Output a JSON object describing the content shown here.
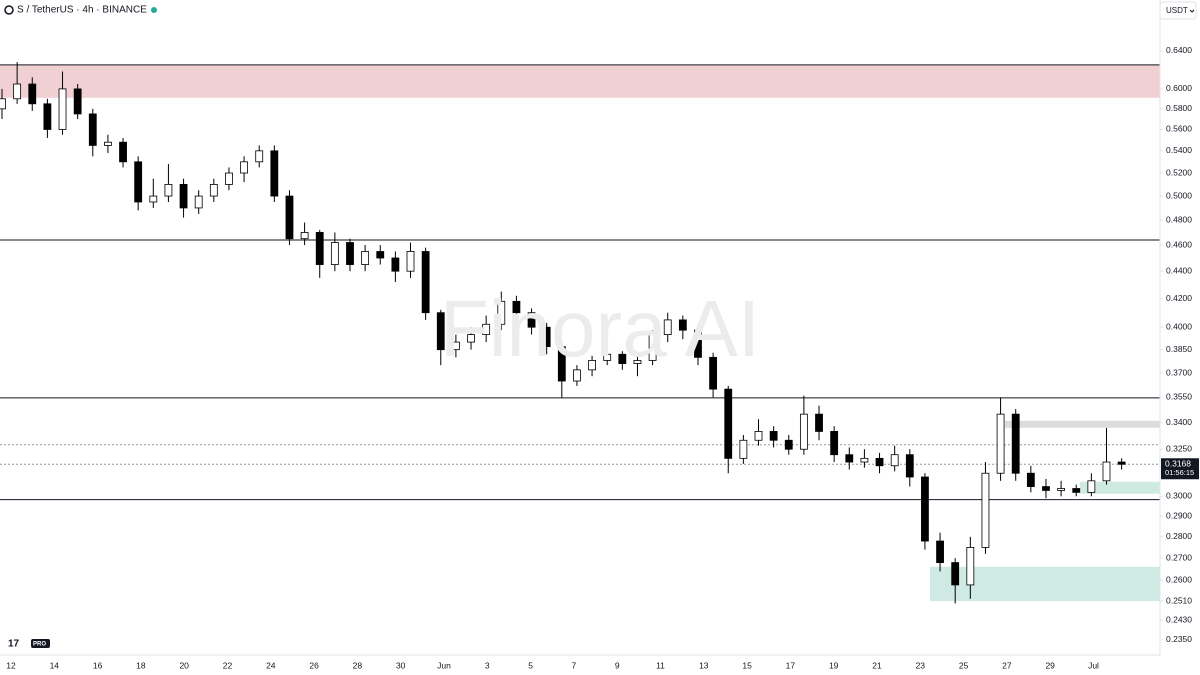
{
  "chart_data": {
    "type": "candlestick",
    "title": "S / TetherUS · 4h · BINANCE",
    "currency": "USDT",
    "watermark": "Finora AI",
    "logo": "PRO",
    "log": true,
    "up_color": "#ffffff",
    "down_color": "#000000",
    "border_color": "#000000",
    "categories": [
      "12",
      "14",
      "16",
      "18",
      "20",
      "22",
      "24",
      "26",
      "28",
      "30",
      "Jun",
      "3",
      "5",
      "7",
      "9",
      "11",
      "13",
      "15",
      "17",
      "19",
      "21",
      "23",
      "25",
      "27",
      "29",
      "Jul"
    ],
    "ohlc": [
      [
        0.58,
        0.6,
        0.57,
        0.59
      ],
      [
        0.59,
        0.628,
        0.585,
        0.605
      ],
      [
        0.605,
        0.612,
        0.578,
        0.585
      ],
      [
        0.585,
        0.59,
        0.552,
        0.56
      ],
      [
        0.56,
        0.618,
        0.555,
        0.6
      ],
      [
        0.6,
        0.605,
        0.57,
        0.575
      ],
      [
        0.575,
        0.58,
        0.535,
        0.545
      ],
      [
        0.545,
        0.555,
        0.538,
        0.548
      ],
      [
        0.548,
        0.552,
        0.525,
        0.53
      ],
      [
        0.53,
        0.535,
        0.488,
        0.495
      ],
      [
        0.495,
        0.515,
        0.49,
        0.5
      ],
      [
        0.5,
        0.528,
        0.495,
        0.51
      ],
      [
        0.51,
        0.515,
        0.482,
        0.49
      ],
      [
        0.49,
        0.505,
        0.485,
        0.5
      ],
      [
        0.5,
        0.515,
        0.495,
        0.51
      ],
      [
        0.51,
        0.525,
        0.505,
        0.52
      ],
      [
        0.52,
        0.535,
        0.512,
        0.53
      ],
      [
        0.53,
        0.545,
        0.525,
        0.54
      ],
      [
        0.54,
        0.545,
        0.495,
        0.5
      ],
      [
        0.5,
        0.505,
        0.46,
        0.465
      ],
      [
        0.465,
        0.478,
        0.46,
        0.47
      ],
      [
        0.47,
        0.472,
        0.435,
        0.445
      ],
      [
        0.445,
        0.47,
        0.44,
        0.462
      ],
      [
        0.462,
        0.465,
        0.44,
        0.445
      ],
      [
        0.445,
        0.46,
        0.44,
        0.455
      ],
      [
        0.455,
        0.46,
        0.445,
        0.45
      ],
      [
        0.45,
        0.455,
        0.432,
        0.44
      ],
      [
        0.44,
        0.462,
        0.435,
        0.455
      ],
      [
        0.455,
        0.458,
        0.405,
        0.41
      ],
      [
        0.41,
        0.412,
        0.375,
        0.385
      ],
      [
        0.385,
        0.395,
        0.38,
        0.39
      ],
      [
        0.39,
        0.4,
        0.385,
        0.395
      ],
      [
        0.395,
        0.408,
        0.39,
        0.402
      ],
      [
        0.402,
        0.425,
        0.398,
        0.418
      ],
      [
        0.418,
        0.422,
        0.405,
        0.41
      ],
      [
        0.41,
        0.413,
        0.395,
        0.4
      ],
      [
        0.4,
        0.403,
        0.382,
        0.387
      ],
      [
        0.387,
        0.39,
        0.355,
        0.365
      ],
      [
        0.365,
        0.375,
        0.362,
        0.372
      ],
      [
        0.372,
        0.381,
        0.368,
        0.378
      ],
      [
        0.378,
        0.386,
        0.375,
        0.382
      ],
      [
        0.382,
        0.384,
        0.372,
        0.376
      ],
      [
        0.376,
        0.382,
        0.368,
        0.378
      ],
      [
        0.378,
        0.398,
        0.375,
        0.395
      ],
      [
        0.395,
        0.41,
        0.39,
        0.405
      ],
      [
        0.405,
        0.408,
        0.392,
        0.398
      ],
      [
        0.398,
        0.4,
        0.375,
        0.38
      ],
      [
        0.38,
        0.383,
        0.355,
        0.36
      ],
      [
        0.36,
        0.362,
        0.312,
        0.32
      ],
      [
        0.32,
        0.333,
        0.317,
        0.33
      ],
      [
        0.33,
        0.342,
        0.327,
        0.335
      ],
      [
        0.335,
        0.338,
        0.326,
        0.33
      ],
      [
        0.33,
        0.333,
        0.322,
        0.325
      ],
      [
        0.325,
        0.356,
        0.322,
        0.345
      ],
      [
        0.345,
        0.35,
        0.33,
        0.335
      ],
      [
        0.335,
        0.338,
        0.318,
        0.322
      ],
      [
        0.322,
        0.326,
        0.314,
        0.318
      ],
      [
        0.318,
        0.325,
        0.315,
        0.32
      ],
      [
        0.32,
        0.323,
        0.312,
        0.316
      ],
      [
        0.316,
        0.327,
        0.313,
        0.322
      ],
      [
        0.322,
        0.325,
        0.305,
        0.31
      ],
      [
        0.31,
        0.312,
        0.274,
        0.278
      ],
      [
        0.278,
        0.282,
        0.264,
        0.268
      ],
      [
        0.268,
        0.27,
        0.25,
        0.258
      ],
      [
        0.258,
        0.28,
        0.252,
        0.275
      ],
      [
        0.275,
        0.318,
        0.272,
        0.312
      ],
      [
        0.312,
        0.355,
        0.308,
        0.345
      ],
      [
        0.345,
        0.348,
        0.308,
        0.312
      ],
      [
        0.312,
        0.316,
        0.302,
        0.305
      ],
      [
        0.305,
        0.309,
        0.299,
        0.303
      ],
      [
        0.303,
        0.308,
        0.3,
        0.304
      ],
      [
        0.304,
        0.306,
        0.3,
        0.302
      ],
      [
        0.302,
        0.312,
        0.3,
        0.308
      ],
      [
        0.308,
        0.337,
        0.306,
        0.318
      ],
      [
        0.318,
        0.32,
        0.314,
        0.3168
      ]
    ],
    "zones": [
      {
        "top": 0.625,
        "bottom": 0.591,
        "color": "#f0d0d2"
      },
      {
        "top": 0.3411,
        "bottom": 0.3371,
        "color": "#dcdcdc"
      },
      {
        "top": 0.3075,
        "bottom": 0.3013,
        "color": "#cfe9e3"
      },
      {
        "top": 0.2661,
        "bottom": 0.251,
        "color": "#cfe9e3"
      }
    ],
    "lines": [
      {
        "price": 0.625,
        "style": "solid"
      },
      {
        "price": 0.464,
        "style": "solid"
      },
      {
        "price": 0.3547,
        "style": "solid"
      },
      {
        "price": 0.2983,
        "style": "solid"
      },
      {
        "price": 0.3275,
        "style": "dotted"
      },
      {
        "price": 0.3168,
        "style": "dotted"
      }
    ],
    "last_price": 0.3168,
    "countdown": "01:56:15",
    "ylim": [
      0.229,
      0.698
    ],
    "yticks": [
      {
        "value": 0.64,
        "label": "0.6400"
      },
      {
        "value": 0.6,
        "label": "0.6000"
      },
      {
        "value": 0.58,
        "label": "0.5800"
      },
      {
        "value": 0.56,
        "label": "0.5600"
      },
      {
        "value": 0.54,
        "label": "0.5400"
      },
      {
        "value": 0.52,
        "label": "0.5200"
      },
      {
        "value": 0.5,
        "label": "0.5000"
      },
      {
        "value": 0.48,
        "label": "0.4800"
      },
      {
        "value": 0.46,
        "label": "0.4600"
      },
      {
        "value": 0.44,
        "label": "0.4400"
      },
      {
        "value": 0.42,
        "label": "0.4200"
      },
      {
        "value": 0.4,
        "label": "0.4000"
      },
      {
        "value": 0.385,
        "label": "0.3850"
      },
      {
        "value": 0.37,
        "label": "0.3700"
      },
      {
        "value": 0.355,
        "label": "0.3550"
      },
      {
        "value": 0.34,
        "label": "0.3400"
      },
      {
        "value": 0.325,
        "label": "0.3250"
      },
      {
        "value": 0.3,
        "label": "0.3000"
      },
      {
        "value": 0.29,
        "label": "0.2900"
      },
      {
        "value": 0.28,
        "label": "0.2800"
      },
      {
        "value": 0.27,
        "label": "0.2700"
      },
      {
        "value": 0.26,
        "label": "0.2600"
      },
      {
        "value": 0.251,
        "label": "0.2510"
      },
      {
        "value": 0.243,
        "label": "0.2430"
      },
      {
        "value": 0.235,
        "label": "0.2350"
      }
    ]
  }
}
